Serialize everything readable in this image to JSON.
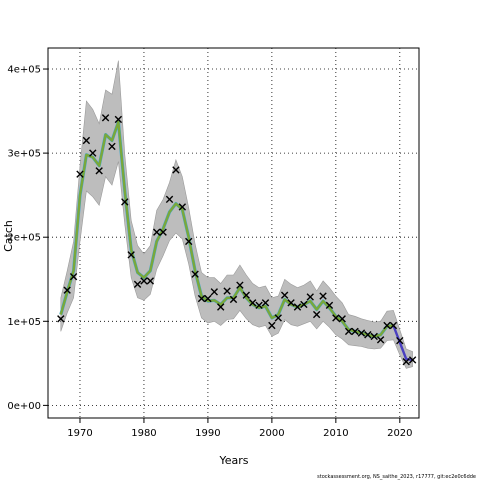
{
  "chart_data": {
    "type": "line",
    "xlabel": "Years",
    "ylabel": "Catch",
    "xlim": [
      1965,
      2023
    ],
    "ylim": [
      -15000,
      425000
    ],
    "x_ticks": [
      1970,
      1980,
      1990,
      2000,
      2010,
      2020
    ],
    "y_ticks": [
      {
        "value": 0,
        "label": "0e+00"
      },
      {
        "value": 100000,
        "label": "1e+05"
      },
      {
        "value": 200000,
        "label": "2e+05"
      },
      {
        "value": 300000,
        "label": "3e+05"
      },
      {
        "value": 400000,
        "label": "4e+05"
      }
    ],
    "grid": true,
    "source_note": "stockassessment.org, NS_saithe_2023, r17777, git:ec2e0c6dde",
    "colors": {
      "band": "#bdbdbd",
      "band_edge": "#9a9a9a",
      "fit_line": "#7aa83a",
      "fit_line_shadow": "#3fa7d6",
      "recent_line": "#4a3fc0",
      "observed": "#000000"
    },
    "series": [
      {
        "kind": "observed",
        "marker": "x",
        "x": [
          1967,
          1968,
          1969,
          1970,
          1971,
          1972,
          1973,
          1974,
          1975,
          1976,
          1977,
          1978,
          1979,
          1980,
          1981,
          1982,
          1983,
          1984,
          1985,
          1986,
          1987,
          1988,
          1989,
          1990,
          1991,
          1992,
          1993,
          1994,
          1995,
          1996,
          1997,
          1998,
          1999,
          2000,
          2001,
          2002,
          2003,
          2004,
          2005,
          2006,
          2007,
          2008,
          2009,
          2010,
          2011,
          2012,
          2013,
          2014,
          2015,
          2016,
          2017,
          2018,
          2019,
          2020,
          2021,
          2022
        ],
        "y": [
          103000,
          137000,
          153000,
          275000,
          315000,
          300000,
          279000,
          342000,
          308000,
          340000,
          242000,
          179000,
          144000,
          148000,
          148000,
          206000,
          206000,
          245000,
          280000,
          236000,
          195000,
          156000,
          127000,
          127000,
          135000,
          117000,
          136000,
          126000,
          143000,
          131000,
          122000,
          119000,
          122000,
          95000,
          104000,
          131000,
          122000,
          117000,
          120000,
          129000,
          108000,
          130000,
          119000,
          104000,
          103000,
          88000,
          88000,
          86000,
          84000,
          82000,
          78000,
          95000,
          95000,
          77000,
          52000,
          54000
        ]
      },
      {
        "kind": "estimate",
        "x": [
          1967,
          1968,
          1969,
          1970,
          1971,
          1972,
          1973,
          1974,
          1975,
          1976,
          1977,
          1978,
          1979,
          1980,
          1981,
          1982,
          1983,
          1984,
          1985,
          1986,
          1987,
          1988,
          1989,
          1990,
          1991,
          1992,
          1993,
          1994,
          1995,
          1996,
          1997,
          1998,
          1999,
          2000,
          2001,
          2002,
          2003,
          2004,
          2005,
          2006,
          2007,
          2008,
          2009,
          2010,
          2011,
          2012,
          2013,
          2014,
          2015,
          2016,
          2017,
          2018,
          2019,
          2020,
          2021,
          2022
        ],
        "y": [
          108000,
          135000,
          160000,
          250000,
          298000,
          295000,
          285000,
          322000,
          315000,
          337000,
          255000,
          185000,
          158000,
          152000,
          160000,
          195000,
          210000,
          230000,
          240000,
          233000,
          200000,
          160000,
          130000,
          124000,
          125000,
          120000,
          128000,
          128000,
          140000,
          128000,
          120000,
          116000,
          118000,
          104000,
          108000,
          126000,
          120000,
          117000,
          120000,
          124000,
          114000,
          124000,
          116000,
          106000,
          100000,
          90000,
          88000,
          86000,
          84000,
          82000,
          84000,
          94000,
          95000,
          75000,
          55000,
          54000
        ],
        "lower": [
          88000,
          110000,
          128000,
          195000,
          255000,
          248000,
          238000,
          272000,
          262000,
          290000,
          215000,
          152000,
          128000,
          125000,
          132000,
          162000,
          178000,
          196000,
          205000,
          198000,
          168000,
          130000,
          104000,
          98000,
          100000,
          95000,
          102000,
          103000,
          113000,
          103000,
          96000,
          93000,
          95000,
          82000,
          86000,
          102000,
          96000,
          94000,
          97000,
          100000,
          91000,
          100000,
          93000,
          84000,
          79000,
          72000,
          71000,
          70000,
          68000,
          67000,
          68000,
          77000,
          78000,
          60000,
          44000,
          46000
        ],
        "upper": [
          128000,
          160000,
          195000,
          285000,
          362000,
          352000,
          335000,
          375000,
          370000,
          410000,
          298000,
          220000,
          190000,
          180000,
          190000,
          232000,
          245000,
          265000,
          292000,
          272000,
          235000,
          192000,
          158000,
          152000,
          152000,
          145000,
          155000,
          155000,
          167000,
          155000,
          145000,
          140000,
          142000,
          128000,
          130000,
          150000,
          144000,
          140000,
          143000,
          148000,
          136000,
          148000,
          140000,
          130000,
          122000,
          108000,
          106000,
          103000,
          101000,
          99000,
          100000,
          112000,
          113000,
          90000,
          67000,
          64000
        ]
      }
    ]
  }
}
